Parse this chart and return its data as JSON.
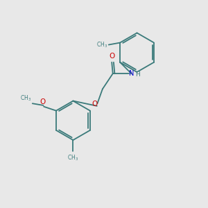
{
  "background_color": "#e8e8e8",
  "bond_color": "#3a7a7a",
  "bond_width": 1.3,
  "O_color": "#cc0000",
  "N_color": "#0000cc",
  "figsize": [
    3.0,
    3.0
  ],
  "dpi": 100,
  "xlim": [
    0,
    10
  ],
  "ylim": [
    0,
    10
  ]
}
